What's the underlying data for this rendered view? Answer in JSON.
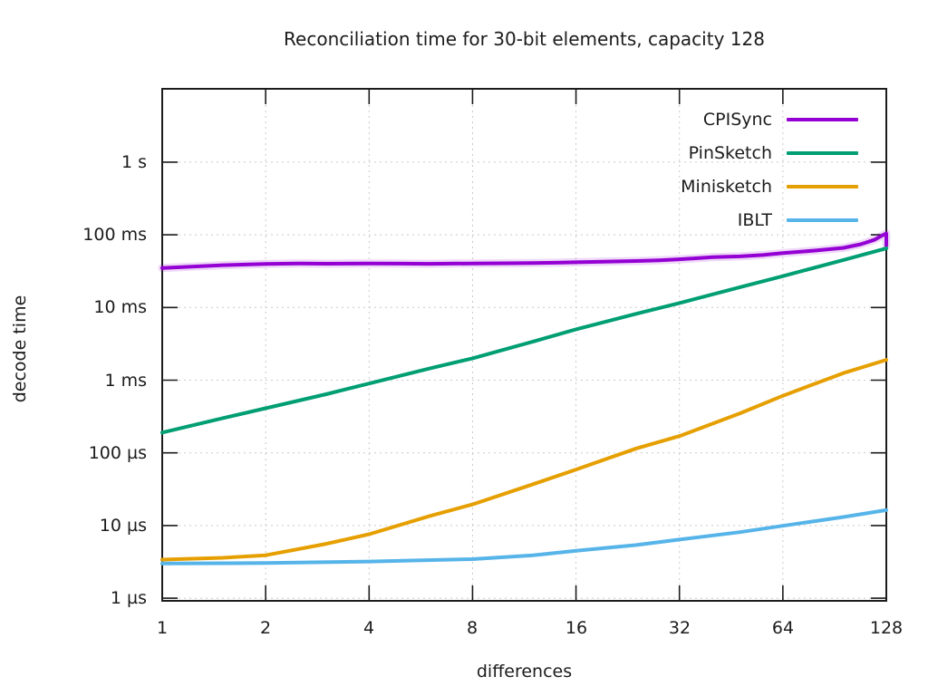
{
  "chart_data": {
    "type": "line",
    "title": "Reconciliation time for 30-bit elements, capacity 128",
    "xlabel": "differences",
    "ylabel": "decode time",
    "x_scale": "log2",
    "y_scale": "log10",
    "xlim": [
      1,
      128
    ],
    "ylim": [
      9.2e-07,
      10.2
    ],
    "grid": true,
    "legend_position": "inside-top-right",
    "x_ticks": [
      {
        "value": 1,
        "label": "1"
      },
      {
        "value": 2,
        "label": "2"
      },
      {
        "value": 4,
        "label": "4"
      },
      {
        "value": 8,
        "label": "8"
      },
      {
        "value": 16,
        "label": "16"
      },
      {
        "value": 32,
        "label": "32"
      },
      {
        "value": 64,
        "label": "64"
      },
      {
        "value": 128,
        "label": "128"
      }
    ],
    "y_ticks": [
      {
        "value": 1,
        "label": "1 s"
      },
      {
        "value": 0.1,
        "label": "100 ms"
      },
      {
        "value": 0.01,
        "label": "10 ms"
      },
      {
        "value": 0.001,
        "label": "1 ms"
      },
      {
        "value": 0.0001,
        "label": "100 µs"
      },
      {
        "value": 1e-05,
        "label": "10 µs"
      },
      {
        "value": 1e-06,
        "label": "1 µs"
      }
    ],
    "series": [
      {
        "name": "CPISync",
        "color": "#9400d3",
        "halo": true,
        "points": [
          [
            1,
            0.035
          ],
          [
            1.5,
            0.0382
          ],
          [
            2,
            0.0398
          ],
          [
            2.5,
            0.0402
          ],
          [
            3,
            0.04
          ],
          [
            4,
            0.0404
          ],
          [
            5,
            0.0401
          ],
          [
            6,
            0.0399
          ],
          [
            8,
            0.0404
          ],
          [
            10,
            0.0406
          ],
          [
            12,
            0.0409
          ],
          [
            14,
            0.0413
          ],
          [
            16,
            0.0419
          ],
          [
            20,
            0.0429
          ],
          [
            24,
            0.0436
          ],
          [
            28,
            0.0446
          ],
          [
            32,
            0.046
          ],
          [
            40,
            0.0492
          ],
          [
            48,
            0.0505
          ],
          [
            56,
            0.0527
          ],
          [
            64,
            0.056
          ],
          [
            80,
            0.0608
          ],
          [
            96,
            0.0662
          ],
          [
            108,
            0.0741
          ],
          [
            118,
            0.0852
          ],
          [
            125,
            0.0989
          ],
          [
            128,
            0.104
          ],
          [
            128,
            0.071
          ]
        ]
      },
      {
        "name": "PinSketch",
        "color": "#009e73",
        "halo": false,
        "points": [
          [
            1,
            0.00019
          ],
          [
            1.5,
            0.0003
          ],
          [
            2,
            0.00041
          ],
          [
            3,
            0.00064
          ],
          [
            4,
            0.0009
          ],
          [
            6,
            0.00145
          ],
          [
            8,
            0.002
          ],
          [
            12,
            0.0034
          ],
          [
            16,
            0.005
          ],
          [
            24,
            0.0082
          ],
          [
            32,
            0.0115
          ],
          [
            48,
            0.019
          ],
          [
            64,
            0.027
          ],
          [
            96,
            0.045
          ],
          [
            128,
            0.065
          ]
        ]
      },
      {
        "name": "Minisketch",
        "color": "#e69f00",
        "halo": false,
        "points": [
          [
            1,
            3.4e-06
          ],
          [
            1.5,
            3.6e-06
          ],
          [
            2,
            3.9e-06
          ],
          [
            3,
            5.6e-06
          ],
          [
            4,
            7.6e-06
          ],
          [
            6,
            1.35e-05
          ],
          [
            8,
            1.95e-05
          ],
          [
            12,
            3.7e-05
          ],
          [
            16,
            5.9e-05
          ],
          [
            24,
            0.000115
          ],
          [
            32,
            0.00017
          ],
          [
            48,
            0.00035
          ],
          [
            64,
            0.00061
          ],
          [
            96,
            0.00125
          ],
          [
            128,
            0.0019
          ]
        ]
      },
      {
        "name": "IBLT",
        "color": "#56b4e9",
        "halo": false,
        "points": [
          [
            1,
            3e-06
          ],
          [
            2,
            3.05e-06
          ],
          [
            4,
            3.2e-06
          ],
          [
            8,
            3.45e-06
          ],
          [
            12,
            3.9e-06
          ],
          [
            16,
            4.5e-06
          ],
          [
            24,
            5.4e-06
          ],
          [
            32,
            6.4e-06
          ],
          [
            48,
            8.1e-06
          ],
          [
            64,
            9.9e-06
          ],
          [
            96,
            1.31e-05
          ],
          [
            128,
            1.63e-05
          ]
        ]
      }
    ]
  }
}
